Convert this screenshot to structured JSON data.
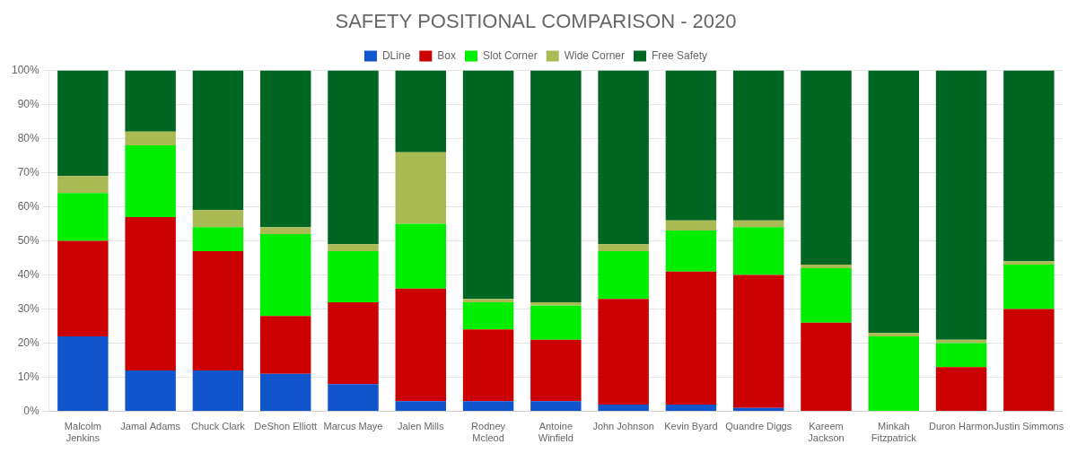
{
  "chart_data": {
    "type": "bar",
    "title": "SAFETY POSITIONAL COMPARISON - 2020",
    "stacked": true,
    "grid": true,
    "legend": "top",
    "categories": [
      "Malcolm\nJenkins",
      "Jamal Adams",
      "Chuck Clark",
      "DeShon Elliott",
      "Marcus Maye",
      "Jalen Mills",
      "Rodney\nMcleod",
      "Antoine\nWinfield",
      "John Johnson",
      "Kevin Byard",
      "Quandre Diggs",
      "Kareem\nJackson",
      "Minkah\nFitzpatrick",
      "Duron Harmon",
      "Justin Simmons"
    ],
    "series": [
      {
        "name": "DLine",
        "color": "#1155cc",
        "values": [
          22,
          12,
          12,
          11,
          8,
          3,
          3,
          3,
          2,
          2,
          1,
          0,
          0,
          0,
          0
        ]
      },
      {
        "name": "Box",
        "color": "#cc0000",
        "values": [
          28,
          45,
          35,
          17,
          24,
          33,
          21,
          18,
          31,
          39,
          39,
          26,
          0,
          13,
          30
        ]
      },
      {
        "name": "Slot Corner",
        "color": "#00ee00",
        "values": [
          14,
          21,
          7,
          24,
          15,
          19,
          8,
          10,
          14,
          12,
          14,
          16,
          22,
          7,
          13
        ]
      },
      {
        "name": "Wide Corner",
        "color": "#aabb55",
        "values": [
          5,
          4,
          5,
          2,
          2,
          21,
          1,
          1,
          2,
          3,
          2,
          1,
          1,
          1,
          1
        ]
      },
      {
        "name": "Free Safety",
        "color": "#006622",
        "values": [
          31,
          18,
          41,
          46,
          51,
          24,
          67,
          68,
          51,
          44,
          44,
          57,
          77,
          79,
          56
        ]
      }
    ],
    "ylim": [
      0,
      100
    ],
    "yticks": [
      {
        "value": 0,
        "label": "0%"
      },
      {
        "value": 10,
        "label": "10%"
      },
      {
        "value": 20,
        "label": "20%"
      },
      {
        "value": 30,
        "label": "30%"
      },
      {
        "value": 40,
        "label": "40%"
      },
      {
        "value": 50,
        "label": "50%"
      },
      {
        "value": 60,
        "label": "60%"
      },
      {
        "value": 70,
        "label": "70%"
      },
      {
        "value": 80,
        "label": "80%"
      },
      {
        "value": 90,
        "label": "90%"
      },
      {
        "value": 100,
        "label": "100%"
      }
    ]
  }
}
